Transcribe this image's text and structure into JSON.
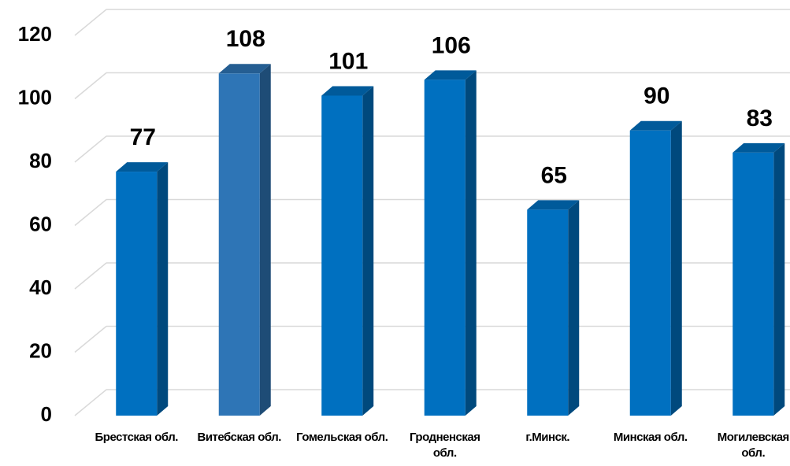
{
  "chart_data": {
    "type": "bar",
    "categories": [
      "Брестская обл.",
      "Витебская обл.",
      "Гомельская обл.",
      "Гродненская обл.",
      "г.Минск.",
      "Минская обл.",
      "Могилевская обл."
    ],
    "values": [
      77,
      108,
      101,
      106,
      65,
      90,
      83
    ],
    "colors": [
      "#0070c0",
      "#2e75b6",
      "#0070c0",
      "#0070c0",
      "#0070c0",
      "#0070c0",
      "#0070c0"
    ],
    "ylim": [
      0,
      120
    ],
    "yticks": [
      0,
      20,
      40,
      60,
      80,
      100,
      120
    ],
    "grid": true
  }
}
